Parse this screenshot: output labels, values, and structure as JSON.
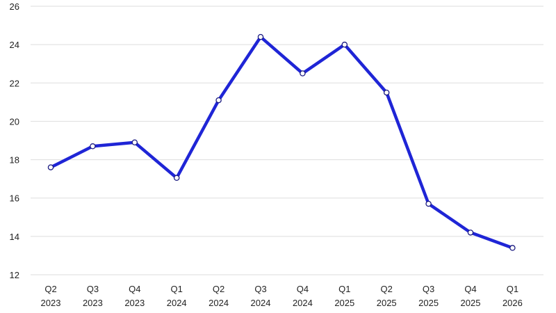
{
  "chart_data": {
    "type": "line",
    "title": "",
    "xlabel": "",
    "ylabel": "",
    "categories": [
      [
        "Q2",
        "2023"
      ],
      [
        "Q3",
        "2023"
      ],
      [
        "Q4",
        "2023"
      ],
      [
        "Q1",
        "2024"
      ],
      [
        "Q2",
        "2024"
      ],
      [
        "Q3",
        "2024"
      ],
      [
        "Q4",
        "2024"
      ],
      [
        "Q1",
        "2025"
      ],
      [
        "Q2",
        "2025"
      ],
      [
        "Q3",
        "2025"
      ],
      [
        "Q4",
        "2025"
      ],
      [
        "Q1",
        "2026"
      ]
    ],
    "series": [
      {
        "values": [
          17.6,
          18.7,
          18.9,
          17.05,
          21.1,
          24.4,
          22.5,
          24.0,
          21.5,
          15.7,
          14.2,
          13.4
        ]
      }
    ],
    "ylim": [
      12,
      26
    ],
    "yticks": [
      12,
      14,
      16,
      18,
      20,
      22,
      24,
      26
    ],
    "grid": true,
    "legend": "none",
    "colors": {
      "line": "#1f25d6",
      "marker_fill": "#ffffff",
      "marker_stroke": "#1a1a80",
      "grid": "#dddddd",
      "text": "#222222"
    }
  }
}
